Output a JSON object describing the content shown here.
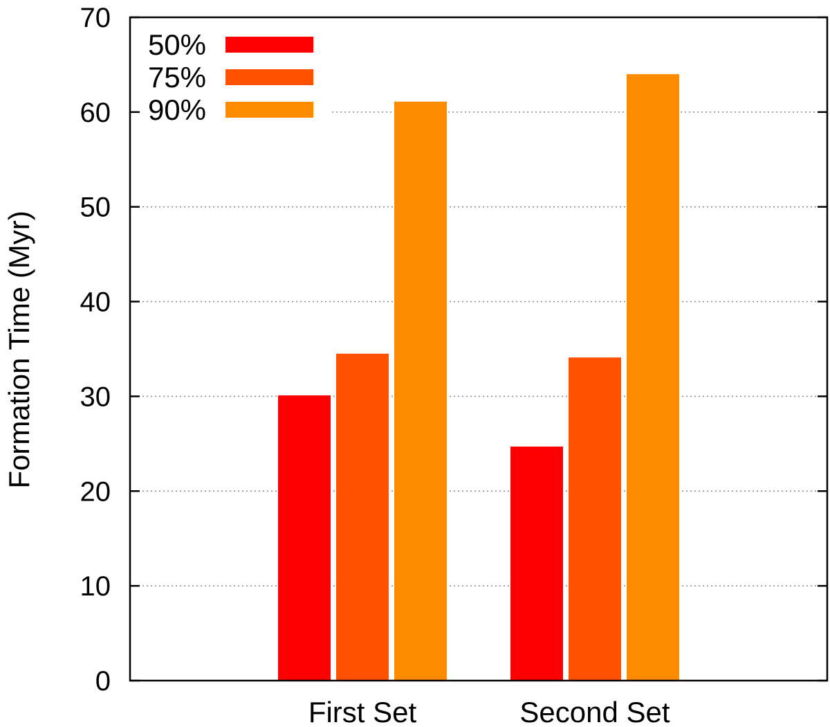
{
  "chart_data": {
    "type": "bar",
    "title": "",
    "xlabel": "",
    "ylabel": "Formation Time (Myr)",
    "ylim": [
      0,
      70
    ],
    "yticks": [
      0,
      10,
      20,
      30,
      40,
      50,
      60,
      70
    ],
    "grid": true,
    "legend_position": "top-left",
    "categories": [
      "First Set",
      "Second Set"
    ],
    "series": [
      {
        "name": "50%",
        "color": "#ff0000",
        "values": [
          30.1,
          24.7
        ]
      },
      {
        "name": "75%",
        "color": "#ff5000",
        "values": [
          34.5,
          34.1
        ]
      },
      {
        "name": "90%",
        "color": "#ff8c00",
        "values": [
          61.1,
          64.0
        ]
      }
    ]
  }
}
